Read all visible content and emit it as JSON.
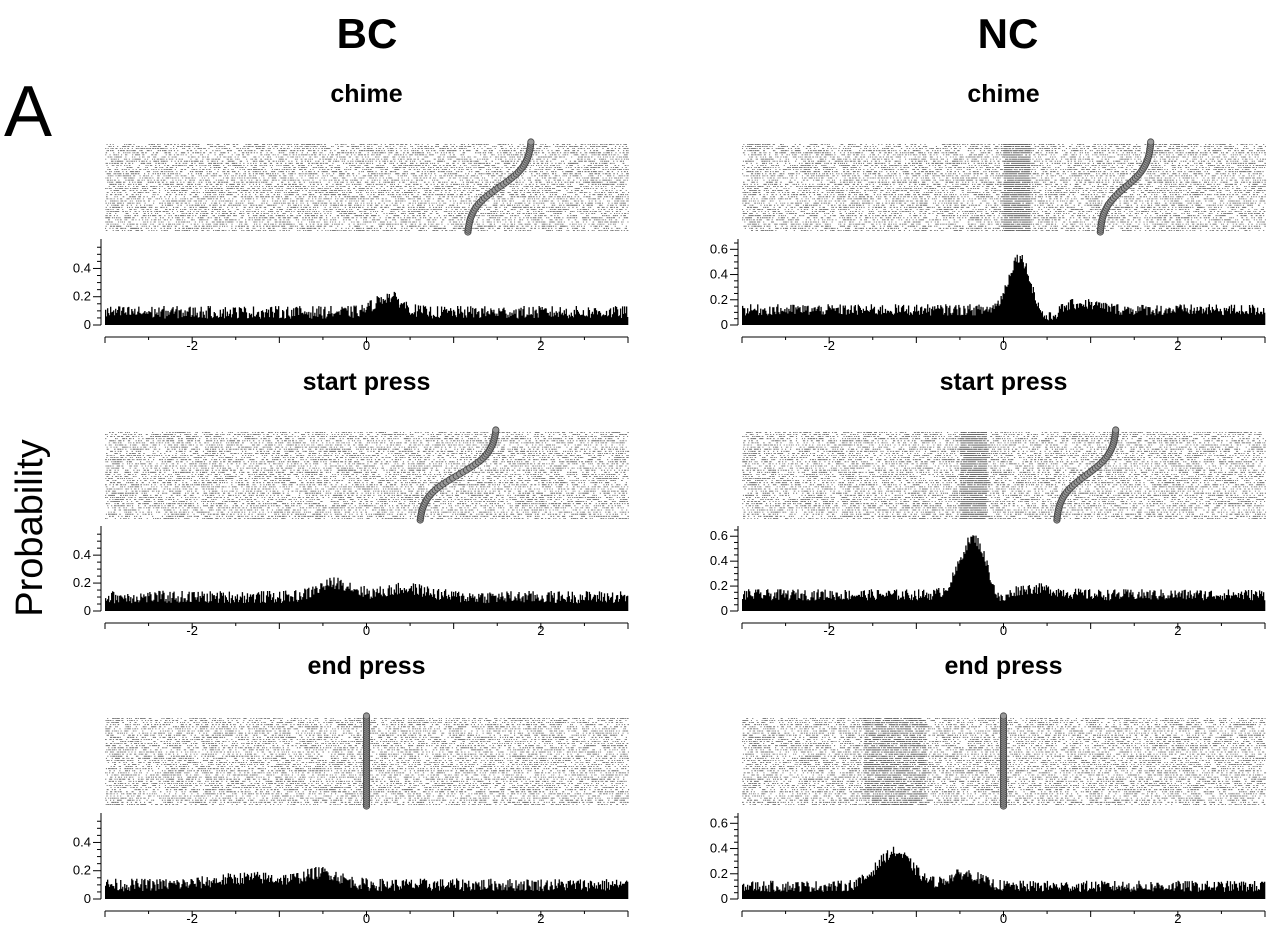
{
  "figure": {
    "panel_letter": "A",
    "ylabel": "Probability",
    "column_titles": [
      "BC",
      "NC"
    ]
  },
  "chart_data": [
    {
      "type": "histogram",
      "column": "BC",
      "title": "chime",
      "raster": {
        "marker_curve": "sigmoid",
        "marker_range": [
          1.15,
          1.9
        ],
        "dense_band": null
      },
      "x_range": [
        -3,
        3
      ],
      "xticks": [
        -2,
        0,
        2
      ],
      "yticks": [
        0,
        0.2,
        0.4
      ],
      "ylim": [
        0,
        0.58
      ],
      "baseline": 0.09,
      "peaks": [
        {
          "center": 0.25,
          "width": 0.15,
          "amp": 0.11
        }
      ]
    },
    {
      "type": "histogram",
      "column": "NC",
      "title": "chime",
      "raster": {
        "marker_curve": "sigmoid",
        "marker_range": [
          1.1,
          1.7
        ],
        "dense_band": [
          0.0,
          0.3
        ]
      },
      "x_range": [
        -3,
        3
      ],
      "xticks": [
        -2,
        0,
        2
      ],
      "yticks": [
        0,
        0.2,
        0.4,
        0.6
      ],
      "ylim": [
        0,
        0.65
      ],
      "baseline": 0.12,
      "peaks": [
        {
          "center": 0.18,
          "width": 0.12,
          "amp": 0.42
        }
      ],
      "dips": [
        {
          "center": 0.5,
          "width": 0.1,
          "depth": 0.08
        }
      ],
      "bumps": [
        {
          "center": 0.9,
          "width": 0.2,
          "amp": 0.05
        }
      ]
    },
    {
      "type": "histogram",
      "column": "BC",
      "title": "start press",
      "raster": {
        "marker_curve": "sigmoid",
        "marker_range": [
          0.6,
          1.5
        ],
        "dense_band": null
      },
      "x_range": [
        -3,
        3
      ],
      "xticks": [
        -2,
        0,
        2
      ],
      "yticks": [
        0,
        0.2,
        0.4
      ],
      "ylim": [
        0,
        0.58
      ],
      "baseline": 0.1,
      "peaks": [
        {
          "center": -0.35,
          "width": 0.2,
          "amp": 0.1
        },
        {
          "center": 0.45,
          "width": 0.25,
          "amp": 0.06
        }
      ]
    },
    {
      "type": "histogram",
      "column": "NC",
      "title": "start press",
      "raster": {
        "marker_curve": "sigmoid",
        "marker_range": [
          0.6,
          1.3
        ],
        "dense_band": [
          -0.5,
          -0.2
        ]
      },
      "x_range": [
        -3,
        3
      ],
      "xticks": [
        -2,
        0,
        2
      ],
      "yticks": [
        0,
        0.2,
        0.4,
        0.6
      ],
      "ylim": [
        0,
        0.65
      ],
      "baseline": 0.13,
      "peaks": [
        {
          "center": -0.35,
          "width": 0.15,
          "amp": 0.45
        }
      ],
      "dips": [
        {
          "center": -0.05,
          "width": 0.08,
          "depth": 0.1
        }
      ],
      "bumps": [
        {
          "center": 0.35,
          "width": 0.25,
          "amp": 0.05
        }
      ]
    },
    {
      "type": "histogram",
      "column": "BC",
      "title": "end press",
      "raster": {
        "marker_curve": "vertical",
        "marker_range": [
          0,
          0
        ],
        "dense_band": null
      },
      "x_range": [
        -3,
        3
      ],
      "xticks": [
        -2,
        0,
        2
      ],
      "yticks": [
        0,
        0.2,
        0.4
      ],
      "ylim": [
        0,
        0.58
      ],
      "baseline": 0.1,
      "peaks": [
        {
          "center": -1.3,
          "width": 0.4,
          "amp": 0.05
        },
        {
          "center": -0.5,
          "width": 0.2,
          "amp": 0.08
        }
      ]
    },
    {
      "type": "histogram",
      "column": "NC",
      "title": "end press",
      "raster": {
        "marker_curve": "vertical",
        "marker_range": [
          0,
          0
        ],
        "dense_band": [
          -1.6,
          -0.9
        ]
      },
      "x_range": [
        -3,
        3
      ],
      "xticks": [
        -2,
        0,
        2
      ],
      "yticks": [
        0,
        0.2,
        0.4,
        0.6
      ],
      "ylim": [
        0,
        0.65
      ],
      "baseline": 0.1,
      "peaks": [
        {
          "center": -1.25,
          "width": 0.2,
          "amp": 0.27
        },
        {
          "center": -0.45,
          "width": 0.18,
          "amp": 0.1
        }
      ]
    }
  ]
}
